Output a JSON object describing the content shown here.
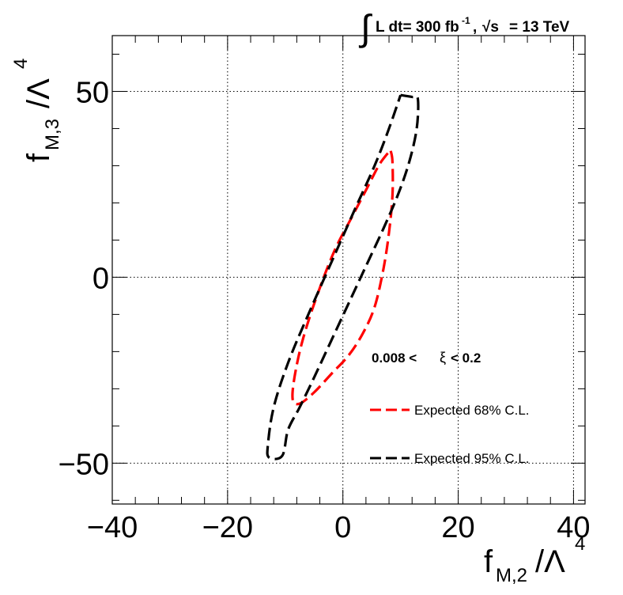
{
  "chart_data": {
    "type": "line",
    "title": {
      "integral": "∫",
      "lumi": "L dt= 300 fb",
      "lumi_exp": "-1",
      "sep": ",",
      "sqrt": "√s",
      "energy": "= 13 TeV"
    },
    "xlabel": {
      "base": "f",
      "sub": "M,2",
      "rest": "/Λ",
      "sup": "4"
    },
    "ylabel": {
      "base": "f",
      "sub": "M,3",
      "rest": "/Λ",
      "sup": "4"
    },
    "xlim": [
      -40,
      42
    ],
    "ylim": [
      -61,
      65
    ],
    "xticks": [
      -40,
      -20,
      0,
      20,
      40
    ],
    "yticks": [
      -50,
      0,
      50
    ],
    "xtick_labels": [
      "−40",
      "−20",
      "0",
      "20",
      "40"
    ],
    "ytick_labels": [
      "−50",
      "0",
      "50"
    ],
    "grid": true,
    "annotation": {
      "left": "0.008 <",
      "xi": "ξ",
      "right": "< 0.2"
    },
    "series": [
      {
        "name": "Expected 68% C.L.",
        "color": "#ff0000",
        "x": [
          8.3,
          8.6,
          8.6,
          8.0,
          7.0,
          5.5,
          3.5,
          1.0,
          -2.0,
          -5.0,
          -7.5,
          -8.7,
          -8.4,
          -7.0,
          -4.5,
          -1.5,
          1.5,
          4.2,
          6.2,
          7.6,
          8.3
        ],
        "y": [
          34,
          31,
          22,
          12,
          2,
          -8,
          -15,
          -21,
          -26,
          -31,
          -34,
          -33,
          -27,
          -17,
          -5,
          7,
          16,
          24,
          30,
          33,
          34
        ]
      },
      {
        "name": "Expected 95% C.L.",
        "color": "#000000",
        "x": [
          10.0,
          12.0,
          13.0,
          12.8,
          11.5,
          9.5,
          7.0,
          4.0,
          1.0,
          -2.0,
          -5.0,
          -7.5,
          -9.5,
          -10.5,
          -12.8,
          -13.0,
          -12.0,
          -9.5,
          -6.0,
          -2.0,
          2.0,
          5.5,
          8.0,
          10.0
        ],
        "y": [
          49,
          48.5,
          48,
          40,
          31,
          22,
          13,
          3,
          -7,
          -17,
          -27,
          -35,
          -41,
          -48,
          -48.5,
          -45,
          -35,
          -23,
          -10,
          4,
          18,
          30,
          40,
          49
        ]
      }
    ]
  }
}
